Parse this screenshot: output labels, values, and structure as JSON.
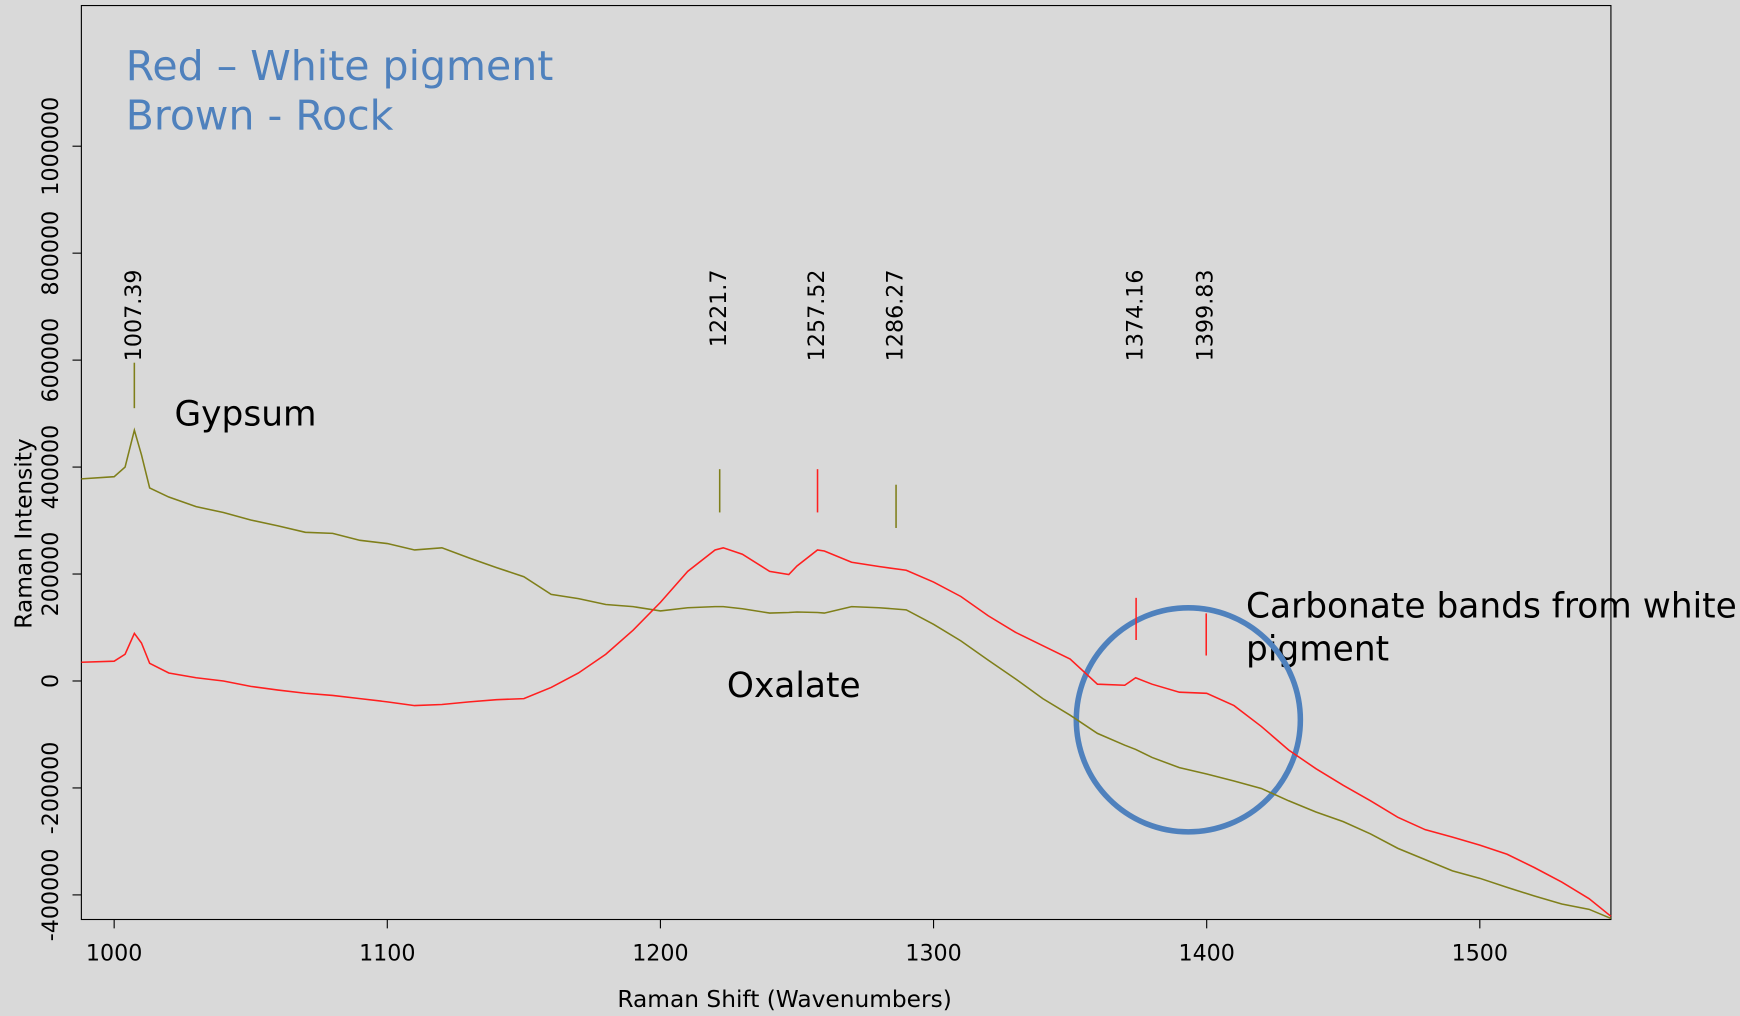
{
  "chart_data": {
    "type": "line",
    "legend_lines": [
      "Red – White pigment",
      "Brown - Rock"
    ],
    "xlabel": "Raman Shift (Wavenumbers)",
    "ylabel": "Raman Intensity",
    "annotations": {
      "gypsum": "Gypsum",
      "oxalate": "Oxalate",
      "carbonate": [
        "Carbonate bands from white",
        "pigment"
      ]
    },
    "xlim": [
      988,
      1548
    ],
    "ylim": [
      -446000,
      1263000
    ],
    "xticks": [
      1000,
      1100,
      1200,
      1300,
      1400,
      1500
    ],
    "yticks": [
      -400000,
      -200000,
      0,
      200000,
      400000,
      600000,
      800000,
      1000000
    ],
    "x": [
      988,
      1000,
      1004,
      1007.4,
      1010,
      1013,
      1020,
      1030,
      1040,
      1050,
      1060,
      1070,
      1080,
      1090,
      1100,
      1110,
      1120,
      1130,
      1140,
      1150,
      1160,
      1170,
      1180,
      1190,
      1200,
      1210,
      1220,
      1223,
      1230,
      1240,
      1247,
      1250,
      1257.5,
      1260,
      1270,
      1280,
      1290,
      1300,
      1310,
      1320,
      1330,
      1340,
      1350,
      1360,
      1370,
      1374,
      1380,
      1390,
      1400,
      1410,
      1420,
      1430,
      1440,
      1450,
      1460,
      1470,
      1480,
      1490,
      1500,
      1510,
      1520,
      1530,
      1540,
      1548
    ],
    "series": [
      {
        "name": "Rock",
        "color": "#7f7f1a",
        "values": [
          378000,
          382000,
          400000,
          469000,
          423000,
          361000,
          344000,
          326000,
          315000,
          301000,
          290000,
          278000,
          276000,
          263000,
          257000,
          245000,
          249000,
          230000,
          212000,
          195000,
          162000,
          154000,
          143000,
          139000,
          131000,
          137000,
          139000,
          139000,
          135000,
          127000,
          128000,
          129000,
          128000,
          127000,
          139000,
          137000,
          133000,
          106000,
          75000,
          39000,
          4000,
          -33000,
          -64000,
          -98000,
          -120000,
          -128000,
          -143000,
          -162000,
          -174000,
          -187000,
          -201000,
          -224000,
          -245000,
          -263000,
          -286000,
          -313000,
          -334000,
          -355000,
          -369000,
          -386000,
          -402000,
          -417000,
          -427000,
          -444000
        ]
      },
      {
        "name": "White pigment",
        "color": "#ff1f1f",
        "values": [
          35000,
          37000,
          50000,
          89000,
          71000,
          33000,
          15000,
          6000,
          0,
          -10000,
          -17000,
          -23000,
          -27000,
          -33000,
          -39000,
          -46000,
          -44000,
          -39000,
          -35000,
          -33000,
          -12000,
          15000,
          50000,
          95000,
          147000,
          205000,
          245000,
          249000,
          237000,
          205000,
          199000,
          215000,
          245000,
          243000,
          222000,
          214000,
          207000,
          185000,
          158000,
          122000,
          91000,
          66000,
          41000,
          -6000,
          -8000,
          6000,
          -6000,
          -21000,
          -23000,
          -46000,
          -85000,
          -129000,
          -164000,
          -195000,
          -224000,
          -255000,
          -278000,
          -292000,
          -307000,
          -324000,
          -349000,
          -376000,
          -407000,
          -440000
        ]
      }
    ],
    "peaks": [
      {
        "value": 1007.39,
        "color": "#7f7f1a"
      },
      {
        "value": 1221.7,
        "color": "#7f7f1a"
      },
      {
        "value": 1257.52,
        "color": "#ff1f1f"
      },
      {
        "value": 1286.27,
        "color": "#7f7f1a"
      },
      {
        "value": 1374.16,
        "color": "#ff1f1f"
      },
      {
        "value": 1399.83,
        "color": "#ff1f1f"
      }
    ]
  }
}
